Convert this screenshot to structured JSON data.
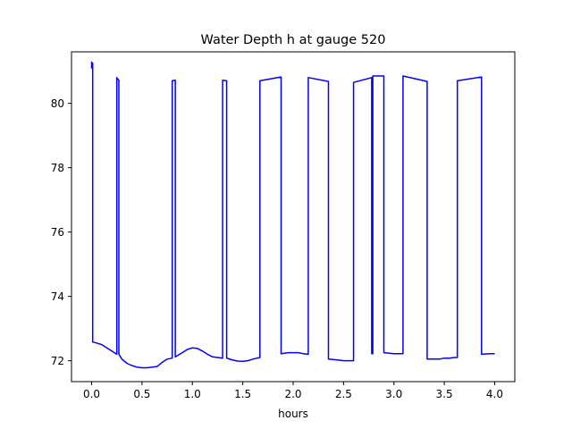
{
  "chart_data": {
    "type": "line",
    "title": "Water Depth h at gauge 520",
    "xlabel": "hours",
    "ylabel": "",
    "xlim": [
      -0.2,
      4.2
    ],
    "ylim": [
      71.35,
      81.6
    ],
    "xticks": [
      0.0,
      0.5,
      1.0,
      1.5,
      2.0,
      2.5,
      3.0,
      3.5,
      4.0
    ],
    "xtick_labels": [
      "0.0",
      "0.5",
      "1.0",
      "1.5",
      "2.0",
      "2.5",
      "3.0",
      "3.5",
      "4.0"
    ],
    "yticks": [
      72,
      74,
      76,
      78,
      80
    ],
    "ytick_labels": [
      "72",
      "74",
      "76",
      "78",
      "80"
    ],
    "grid": false,
    "series": [
      {
        "color": "#0000ff",
        "x": [
          0.0,
          0.0,
          0.01,
          0.01,
          0.01,
          0.05,
          0.1,
          0.15,
          0.2,
          0.25,
          0.25,
          0.25,
          0.26,
          0.27,
          0.27,
          0.3,
          0.35,
          0.4,
          0.45,
          0.5,
          0.55,
          0.6,
          0.65,
          0.7,
          0.75,
          0.8,
          0.8,
          0.8,
          0.83,
          0.83,
          0.83,
          0.9,
          0.95,
          1.0,
          1.05,
          1.1,
          1.15,
          1.2,
          1.25,
          1.3,
          1.3,
          1.3,
          1.34,
          1.34,
          1.34,
          1.4,
          1.45,
          1.5,
          1.55,
          1.6,
          1.67,
          1.67,
          1.67,
          1.88,
          1.88,
          1.88,
          1.95,
          2.0,
          2.05,
          2.1,
          2.15,
          2.15,
          2.15,
          2.35,
          2.35,
          2.35,
          2.45,
          2.5,
          2.6,
          2.6,
          2.6,
          2.78,
          2.78,
          2.79,
          2.79,
          2.8,
          2.9,
          2.9,
          2.9,
          3.0,
          3.05,
          3.09,
          3.09,
          3.09,
          3.33,
          3.33,
          3.33,
          3.4,
          3.45,
          3.5,
          3.55,
          3.6,
          3.63,
          3.63,
          3.63,
          3.87,
          3.87,
          3.87,
          3.95,
          4.0
        ],
        "y": [
          81.3,
          81.1,
          81.2,
          81.25,
          72.58,
          72.55,
          72.5,
          72.4,
          72.3,
          72.2,
          80.8,
          80.78,
          80.75,
          80.72,
          72.2,
          72.05,
          71.92,
          71.85,
          71.8,
          71.78,
          71.78,
          71.8,
          71.82,
          71.95,
          72.05,
          72.08,
          80.68,
          80.7,
          80.72,
          80.72,
          72.12,
          72.25,
          72.35,
          72.4,
          72.38,
          72.3,
          72.2,
          72.12,
          72.1,
          72.08,
          80.72,
          80.72,
          80.7,
          80.7,
          72.08,
          72.02,
          71.99,
          71.98,
          72.0,
          72.05,
          72.1,
          80.65,
          80.7,
          80.82,
          80.82,
          72.22,
          72.25,
          72.25,
          72.25,
          72.22,
          72.2,
          80.8,
          80.8,
          80.68,
          80.68,
          72.05,
          72.02,
          72.0,
          72.0,
          72.05,
          80.65,
          80.8,
          72.22,
          72.22,
          80.85,
          80.85,
          80.85,
          80.85,
          72.25,
          72.22,
          72.22,
          72.22,
          80.85,
          80.85,
          80.68,
          80.68,
          72.05,
          72.05,
          72.05,
          72.08,
          72.08,
          72.1,
          72.1,
          80.7,
          80.7,
          80.82,
          80.82,
          72.2,
          72.22,
          72.22
        ]
      }
    ]
  }
}
